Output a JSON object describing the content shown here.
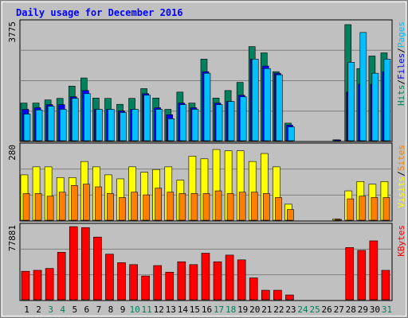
{
  "title": "Daily usage for December 2016",
  "colors": {
    "background": "#C0C0C0",
    "title": "#0000FF",
    "pages": "#00C0FF",
    "files": "#0000FF",
    "hits": "#00805C",
    "visits": "#FFFF00",
    "sites": "#FF8000",
    "kbytes": "#FF0000",
    "weekend_day": "#00805C",
    "weekday": "#000000"
  },
  "chart_data": [
    {
      "type": "bar",
      "title": "Daily usage for December 2016",
      "ymax_label": "3775",
      "ylim": [
        0,
        3775
      ],
      "grid": true,
      "right_labels": [
        "Pages",
        "Files",
        "Hits"
      ],
      "categories": [
        "1",
        "2",
        "3",
        "4",
        "5",
        "6",
        "7",
        "8",
        "9",
        "10",
        "11",
        "12",
        "13",
        "14",
        "15",
        "16",
        "17",
        "18",
        "19",
        "20",
        "21",
        "22",
        "23",
        "24",
        "25",
        "26",
        "27",
        "28",
        "29",
        "30",
        "31"
      ],
      "weekend_days": [
        "3",
        "4",
        "10",
        "11",
        "17",
        "18",
        "24",
        "25",
        "31"
      ],
      "series": [
        {
          "name": "Hits",
          "values": [
            1200,
            1200,
            1300,
            1350,
            1740,
            2000,
            1360,
            1350,
            1160,
            1350,
            1660,
            1360,
            1000,
            1550,
            1200,
            2600,
            1360,
            1600,
            1860,
            3000,
            2800,
            2200,
            560,
            0,
            0,
            0,
            30,
            3700,
            2300,
            2700,
            2800
          ]
        },
        {
          "name": "Files",
          "values": [
            1000,
            1050,
            1150,
            1150,
            1400,
            1600,
            1000,
            1000,
            950,
            1000,
            1500,
            1050,
            830,
            1200,
            1050,
            2200,
            1200,
            1250,
            1450,
            2600,
            2380,
            2150,
            500,
            0,
            0,
            0,
            20,
            1550,
            1800,
            1800,
            2200
          ]
        },
        {
          "name": "Pages",
          "values": [
            850,
            980,
            1100,
            1000,
            1350,
            1500,
            1000,
            1000,
            900,
            1000,
            1450,
            1000,
            700,
            1150,
            1000,
            2150,
            1150,
            1250,
            1400,
            2600,
            2300,
            2100,
            440,
            0,
            0,
            0,
            0,
            2500,
            3450,
            2150,
            2600
          ]
        }
      ]
    },
    {
      "type": "bar",
      "ymax_label": "280",
      "ylim": [
        0,
        280
      ],
      "grid": true,
      "right_labels": [
        "Sites",
        "Visits"
      ],
      "categories": [
        "1",
        "2",
        "3",
        "4",
        "5",
        "6",
        "7",
        "8",
        "9",
        "10",
        "11",
        "12",
        "13",
        "14",
        "15",
        "16",
        "17",
        "18",
        "19",
        "20",
        "21",
        "22",
        "23",
        "24",
        "25",
        "26",
        "27",
        "28",
        "29",
        "30",
        "31"
      ],
      "series": [
        {
          "name": "Visits",
          "values": [
            170,
            200,
            200,
            160,
            160,
            220,
            200,
            170,
            155,
            200,
            180,
            190,
            200,
            150,
            240,
            230,
            265,
            260,
            260,
            220,
            250,
            200,
            60,
            0,
            0,
            0,
            5,
            110,
            145,
            135,
            145
          ]
        },
        {
          "name": "Sites",
          "values": [
            100,
            100,
            90,
            105,
            130,
            135,
            125,
            100,
            85,
            105,
            95,
            120,
            105,
            100,
            100,
            100,
            110,
            100,
            105,
            105,
            100,
            85,
            40,
            0,
            0,
            0,
            3,
            80,
            90,
            85,
            85
          ]
        }
      ]
    },
    {
      "type": "bar",
      "ymax_label": "77881",
      "ylim": [
        0,
        77881
      ],
      "grid": true,
      "right_labels": [
        "KBytes"
      ],
      "categories": [
        "1",
        "2",
        "3",
        "4",
        "5",
        "6",
        "7",
        "8",
        "9",
        "10",
        "11",
        "12",
        "13",
        "14",
        "15",
        "16",
        "17",
        "18",
        "19",
        "20",
        "21",
        "22",
        "23",
        "24",
        "25",
        "26",
        "27",
        "28",
        "29",
        "30",
        "31"
      ],
      "series": [
        {
          "name": "KBytes",
          "values": [
            30000,
            31000,
            33000,
            50000,
            77000,
            76000,
            66000,
            48000,
            39000,
            37000,
            25000,
            36000,
            29000,
            40000,
            37000,
            49000,
            40000,
            47000,
            42000,
            23000,
            10000,
            10000,
            5000,
            0,
            0,
            0,
            0,
            55000,
            52000,
            62000,
            31000
          ]
        }
      ]
    }
  ]
}
